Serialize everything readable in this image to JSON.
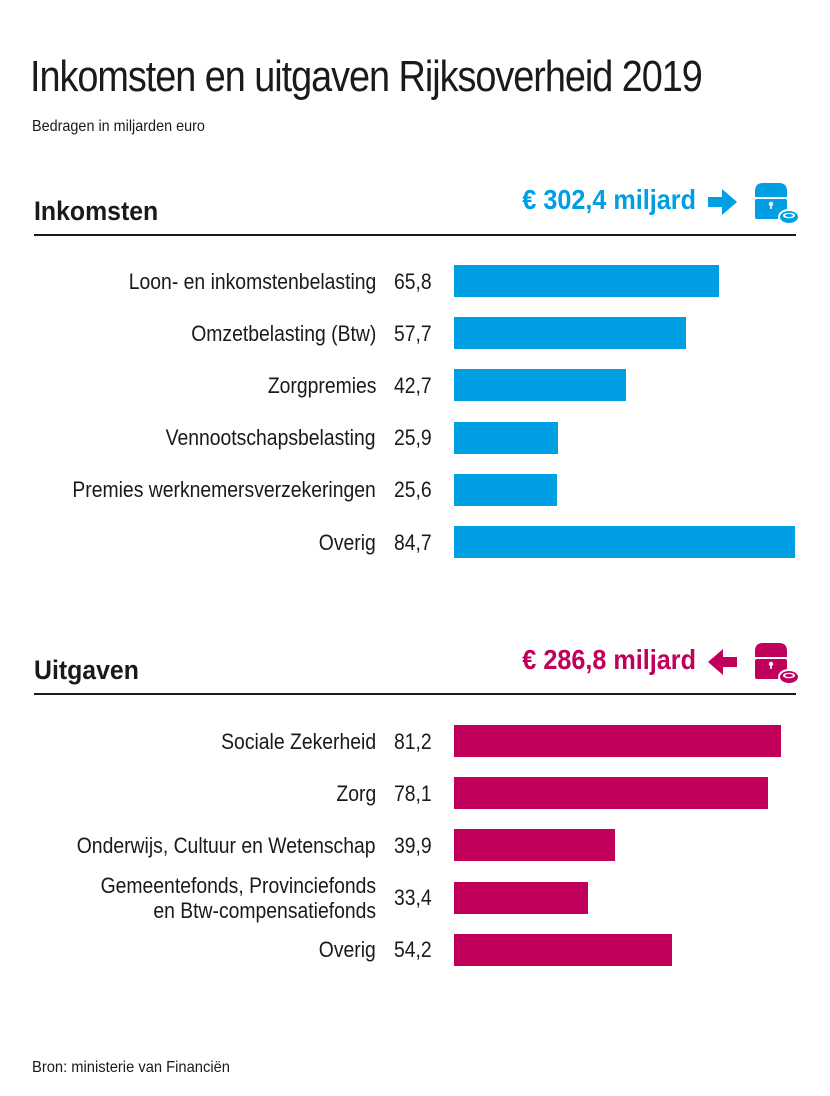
{
  "title": "Inkomsten en uitgaven Rijksoverheid 2019",
  "subtitle": "Bedragen in miljarden euro",
  "source": "Bron: ministerie van Financiën",
  "colors": {
    "income": "#009fe3",
    "expense": "#c0005b",
    "text": "#1a1a1a"
  },
  "income": {
    "heading": "Inkomsten",
    "total": "€ 302,4 miljard",
    "arrow_icon": "arrow-right-icon",
    "chest_icon": "treasure-chest-coin-icon"
  },
  "expense": {
    "heading": "Uitgaven",
    "total": "€ 286,8 miljard",
    "arrow_icon": "arrow-left-icon",
    "chest_icon": "treasure-chest-coin-icon"
  },
  "chart_data": [
    {
      "type": "bar",
      "orientation": "horizontal",
      "title": "Inkomsten",
      "total_label": "€ 302,4 miljard",
      "unit": "miljard euro",
      "categories": [
        "Loon- en inkomstenbelasting",
        "Omzetbelasting (Btw)",
        "Zorgpremies",
        "Vennootschapsbelasting",
        "Premies werknemersverzekeringen",
        "Overig"
      ],
      "values": [
        65.8,
        57.7,
        42.7,
        25.9,
        25.6,
        84.7
      ],
      "value_labels": [
        "65,8",
        "57,7",
        "42,7",
        "25,9",
        "25,6",
        "84,7"
      ],
      "color": "#009fe3",
      "xlim": [
        0,
        84.7
      ],
      "grid": false,
      "legend": "none"
    },
    {
      "type": "bar",
      "orientation": "horizontal",
      "title": "Uitgaven",
      "total_label": "€ 286,8 miljard",
      "unit": "miljard euro",
      "categories": [
        "Sociale Zekerheid",
        "Zorg",
        "Onderwijs, Cultuur en Wetenschap",
        "Gemeentefonds, Provinciefonds\nen Btw-compensatiefonds",
        "Overig"
      ],
      "values": [
        81.2,
        78.1,
        39.9,
        33.4,
        54.2
      ],
      "value_labels": [
        "81,2",
        "78,1",
        "39,9",
        "33,4",
        "54,2"
      ],
      "color": "#c0005b",
      "xlim": [
        0,
        84.7
      ],
      "grid": false,
      "legend": "none"
    }
  ]
}
